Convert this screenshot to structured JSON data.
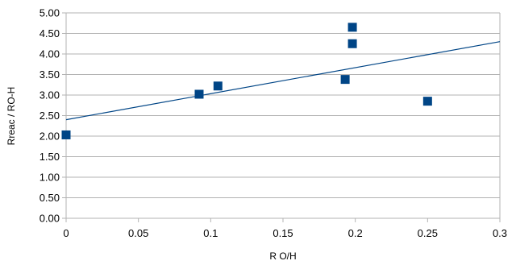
{
  "chart_data": {
    "type": "scatter",
    "xlabel": "R O/H",
    "ylabel": "Rreac / RO-H",
    "xlim": [
      0,
      0.3
    ],
    "ylim": [
      0,
      5
    ],
    "x_ticks": [
      0,
      0.05,
      0.1,
      0.15,
      0.2,
      0.25,
      0.3
    ],
    "y_ticks": [
      0,
      0.5,
      1,
      1.5,
      2,
      2.5,
      3,
      3.5,
      4,
      4.5,
      5
    ],
    "x_tick_labels": [
      "0",
      "0.05",
      "0.1",
      "0.15",
      "0.2",
      "0.25",
      "0.3"
    ],
    "y_tick_labels": [
      "0.00",
      "0.50",
      "1.00",
      "1.50",
      "2.00",
      "2.50",
      "3.00",
      "3.50",
      "4.00",
      "4.50",
      "5.00"
    ],
    "grid": "horizontal",
    "legend": "none",
    "series": [
      {
        "marker": "square",
        "color": "#004586",
        "points": [
          {
            "x": 0.0,
            "y": 2.03
          },
          {
            "x": 0.092,
            "y": 3.02
          },
          {
            "x": 0.105,
            "y": 3.22
          },
          {
            "x": 0.193,
            "y": 3.38
          },
          {
            "x": 0.198,
            "y": 4.65
          },
          {
            "x": 0.198,
            "y": 4.25
          },
          {
            "x": 0.25,
            "y": 2.85
          }
        ]
      }
    ],
    "trendline": {
      "type": "linear",
      "color": "#004586",
      "y_at_xmin": 2.4,
      "y_at_xmax": 4.3
    },
    "colors": {
      "axis": "#b3b3b3",
      "grid": "#b3b3b3",
      "marker": "#004586"
    }
  }
}
